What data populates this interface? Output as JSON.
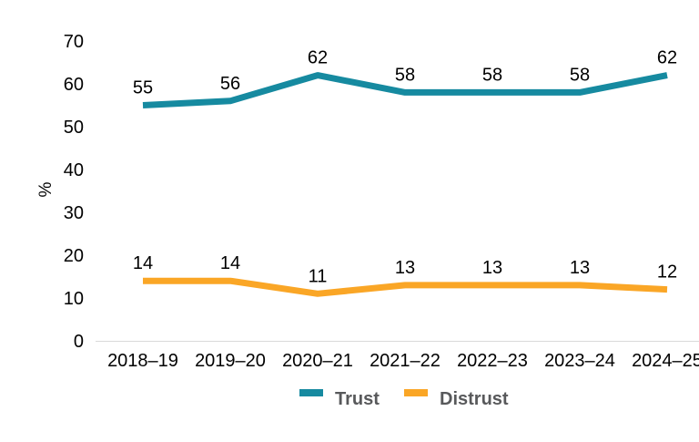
{
  "chart_data": {
    "type": "line",
    "title": "",
    "ylabel": "%",
    "xlabel": "",
    "categories": [
      "2018–19",
      "2019–20",
      "2020–21",
      "2021–22",
      "2022–23",
      "2023–24",
      "2024–25"
    ],
    "series": [
      {
        "name": "Trust",
        "color": "#168AA0",
        "values": [
          55,
          56,
          62,
          58,
          58,
          58,
          62
        ]
      },
      {
        "name": "Distrust",
        "color": "#FAA626",
        "values": [
          14,
          14,
          11,
          13,
          13,
          13,
          12
        ]
      }
    ],
    "y_axis": {
      "min": 0,
      "max": 70,
      "step": 10,
      "ticks": [
        0,
        10,
        20,
        30,
        40,
        50,
        60,
        70
      ]
    },
    "grid": false,
    "data_labels": true,
    "legend_position": "bottom",
    "axis_line_color": "#d9d9d9",
    "legend_text_color": "#58595B"
  }
}
